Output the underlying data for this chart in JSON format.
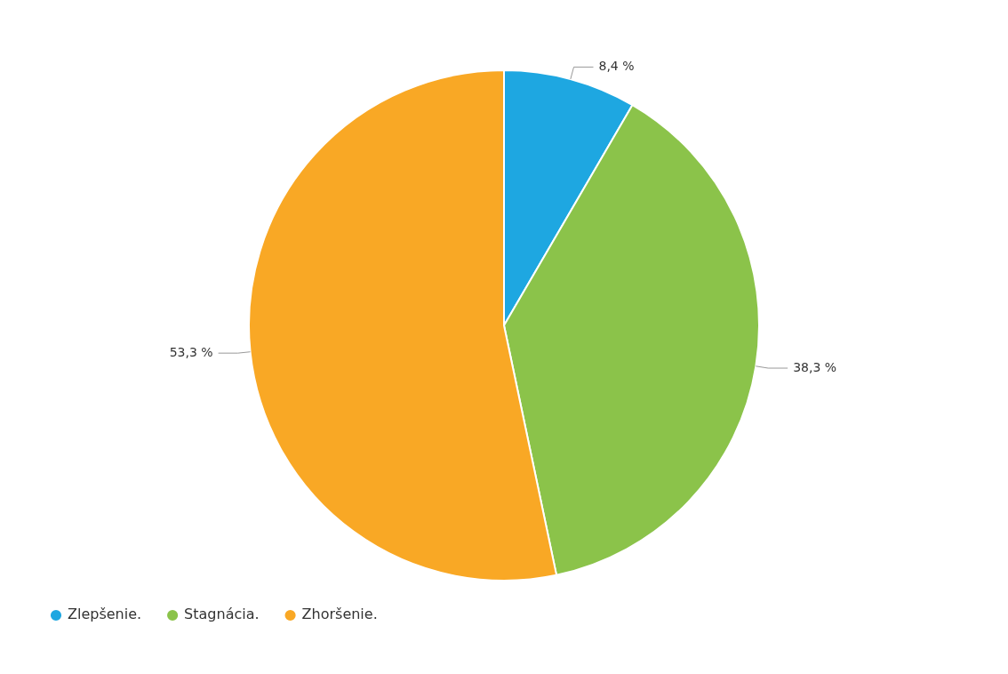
{
  "chart_data": {
    "type": "pie",
    "categories": [
      "Zlepšenie.",
      "Stagnácia.",
      "Zhoršenie."
    ],
    "values": [
      8.4,
      38.3,
      53.3
    ],
    "colors": [
      "#1ea7e1",
      "#8bc34a",
      "#f9a825"
    ],
    "value_labels": [
      "8,4 %",
      "38,3 %",
      "53,3 %"
    ],
    "legend": "bottom left"
  }
}
